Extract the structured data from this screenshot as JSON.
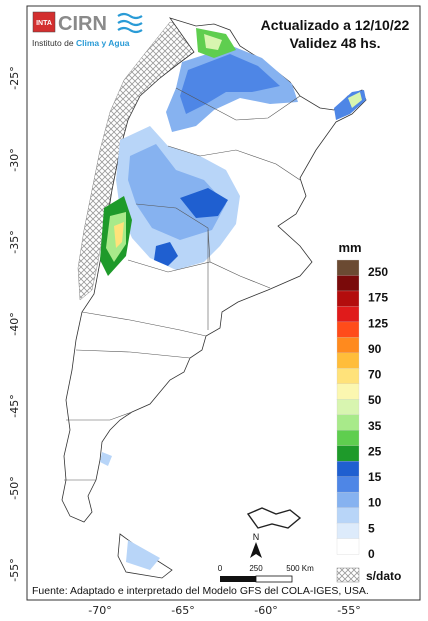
{
  "header": {
    "updated": "Actualizado a 12/10/22",
    "validity": "Validez 48 hs."
  },
  "logo": {
    "inta": "INTA",
    "cirn": "CIRN",
    "institute_prefix": "Instituto de ",
    "institute_highlight": "Clima y Agua",
    "highlight_color": "#2a9bd6"
  },
  "source_note": "Fuente: Adaptado e interpretado del Modelo GFS del COLA-IGES, USA.",
  "axes": {
    "lat_ticks": [
      "-25°",
      "-30°",
      "-35°",
      "-40°",
      "-45°",
      "-50°",
      "-55°"
    ],
    "lon_ticks": [
      "-70°",
      "-65°",
      "-60°",
      "-55°"
    ]
  },
  "scale_bar": {
    "north": "N",
    "labels": [
      "0",
      "250",
      "500 Km"
    ]
  },
  "legend": {
    "unit": "mm",
    "labels": [
      "250",
      "175",
      "125",
      "90",
      "70",
      "50",
      "35",
      "25",
      "15",
      "10",
      "5",
      "0"
    ],
    "nodata_label": "s/dato",
    "colors": [
      "#6b4a32",
      "#7a0a0a",
      "#b30d0d",
      "#e01b1b",
      "#ff4c1a",
      "#ff8a1e",
      "#ffbd3a",
      "#ffe27a",
      "#fbf7b0",
      "#d8f5b0",
      "#a8ea8a",
      "#5fce4f",
      "#1e9a2a",
      "#1f5fd0",
      "#4e86e6",
      "#86b2f0",
      "#b8d5f8",
      "#ddebfb",
      "#ffffff"
    ]
  }
}
